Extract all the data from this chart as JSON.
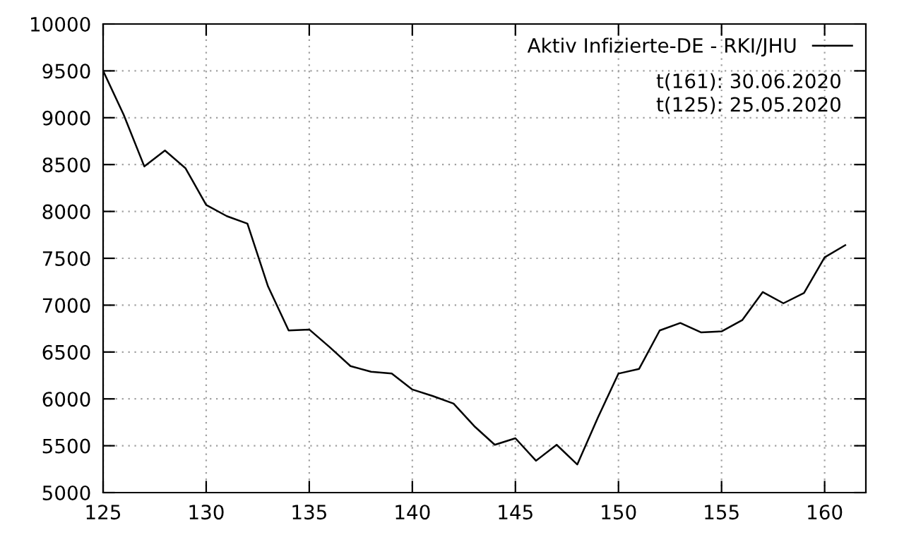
{
  "chart_data": {
    "type": "line",
    "x": [
      125,
      126,
      127,
      128,
      129,
      130,
      131,
      132,
      133,
      134,
      135,
      136,
      137,
      138,
      139,
      140,
      141,
      142,
      143,
      144,
      145,
      146,
      147,
      148,
      149,
      150,
      151,
      152,
      153,
      154,
      155,
      156,
      157,
      158,
      159,
      160,
      161
    ],
    "series": [
      {
        "name": "Aktiv Infizierte-DE - RKI/JHU",
        "color": "#000000",
        "values": [
          9500,
          9030,
          8480,
          8650,
          8460,
          8070,
          7950,
          7870,
          7200,
          6730,
          6740,
          6550,
          6350,
          6290,
          6270,
          6100,
          6030,
          5950,
          5710,
          5510,
          5580,
          5340,
          5510,
          5300,
          5800,
          6270,
          6320,
          6730,
          6810,
          6710,
          6720,
          6840,
          7140,
          7020,
          7130,
          7510,
          7640
        ]
      }
    ],
    "xlim": [
      125,
      162
    ],
    "xticks": [
      125,
      130,
      135,
      140,
      145,
      150,
      155,
      160
    ],
    "ylim": [
      5000,
      10000
    ],
    "yticks": [
      5000,
      5500,
      6000,
      6500,
      7000,
      7500,
      8000,
      8500,
      9000,
      9500,
      10000
    ],
    "grid": true,
    "legend": "top right",
    "marker": "none",
    "line_style": "solid",
    "annotations": [
      "t(161): 30.06.2020",
      "t(125): 25.05.2020"
    ]
  }
}
